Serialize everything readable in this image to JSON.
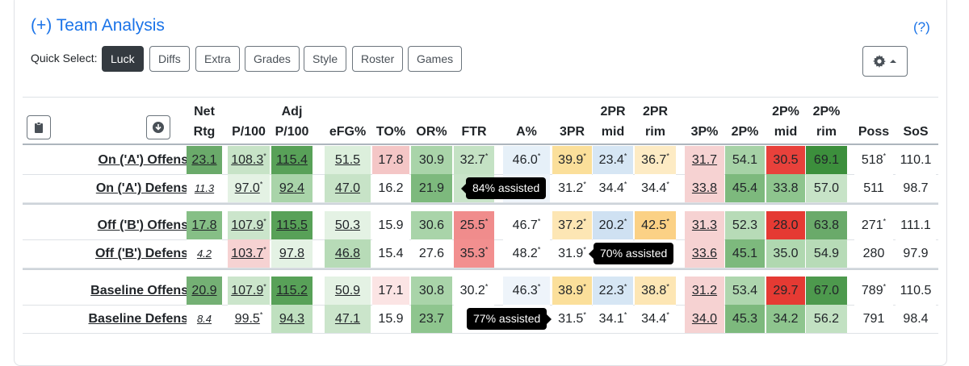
{
  "title": "(+) Team Analysis",
  "help_label": "(?)",
  "quick_select": {
    "label": "Quick Select:",
    "buttons": [
      "Luck",
      "Diffs",
      "Extra",
      "Grades",
      "Style",
      "Roster",
      "Games"
    ],
    "active": "Luck"
  },
  "settings": {
    "icon": "gear-icon",
    "caret": "caret-up-icon"
  },
  "toolbar_icons": [
    "clipboard-icon",
    "download-icon"
  ],
  "columns": [
    {
      "line1": "Net",
      "line2": "Rtg"
    },
    {
      "line1": "",
      "line2": "P/100"
    },
    {
      "line1": "Adj",
      "line2": "P/100"
    },
    {
      "line1": "",
      "line2": "eFG%"
    },
    {
      "line1": "",
      "line2": "TO%"
    },
    {
      "line1": "",
      "line2": "OR%"
    },
    {
      "line1": "",
      "line2": "FTR"
    },
    {
      "line1": "",
      "line2": "A%"
    },
    {
      "line1": "",
      "line2": "3PR"
    },
    {
      "line1": "2PR",
      "line2": "mid"
    },
    {
      "line1": "2PR",
      "line2": "rim"
    },
    {
      "line1": "",
      "line2": "3P%"
    },
    {
      "line1": "",
      "line2": "2P%"
    },
    {
      "line1": "2P%",
      "line2": "mid"
    },
    {
      "line1": "2P%",
      "line2": "rim"
    },
    {
      "line1": "",
      "line2": "Poss"
    },
    {
      "line1": "",
      "line2": "SoS"
    }
  ],
  "rows": [
    {
      "label": "On ('A') Offense",
      "cells": [
        {
          "v": "23.1",
          "bg": "#6aaa6a",
          "u": true
        },
        {
          "v": "108.3",
          "s": "*",
          "bg": "#c7e3c7",
          "u": true
        },
        {
          "v": "115.4",
          "bg": "#58a158",
          "u": true
        },
        {
          "v": "51.5",
          "bg": "#dcefdc",
          "u": true
        },
        {
          "v": "17.8",
          "bg": "#f4c6c6"
        },
        {
          "v": "30.9",
          "bg": "#a9d4a9"
        },
        {
          "v": "32.7",
          "s": "*",
          "bg": "#c4e2c4"
        },
        {
          "v": "46.0",
          "s": "*",
          "bg": "#e6f0f8"
        },
        {
          "v": "39.9",
          "s": "*",
          "bg": "#fbdf9a"
        },
        {
          "v": "23.4",
          "s": "*",
          "bg": "#d6e6f4"
        },
        {
          "v": "36.7",
          "s": "*",
          "bg": "#fdebc4"
        },
        {
          "v": "31.7",
          "bg": "#f6d2d2",
          "u": true
        },
        {
          "v": "54.1",
          "bg": "#a6d2a6"
        },
        {
          "v": "30.5",
          "bg": "#e8413b"
        },
        {
          "v": "69.1",
          "bg": "#3c8f3c"
        },
        {
          "v": "518",
          "s": "*",
          "bg": "#ffffff"
        },
        {
          "v": "110.1",
          "bg": "#ffffff"
        }
      ]
    },
    {
      "label": "On ('A') Defense",
      "cells": [
        {
          "v": "11.3",
          "bg": "#ffffff",
          "u": true,
          "small": true
        },
        {
          "v": "97.0",
          "s": "*",
          "bg": "#e4f2e4",
          "u": true
        },
        {
          "v": "92.4",
          "bg": "#a9d4a9",
          "u": true
        },
        {
          "v": "47.0",
          "bg": "#c7e3c7",
          "u": true
        },
        {
          "v": "16.2",
          "bg": "#ffffff"
        },
        {
          "v": "21.9",
          "bg": "#7db97d"
        },
        {
          "v": "2",
          "bg": "#c9e4c9"
        },
        {
          "v": "",
          "bg": "#eef4fa"
        },
        {
          "v": "31.2",
          "s": "*",
          "bg": "#ffffff"
        },
        {
          "v": "34.4",
          "s": "*",
          "bg": "#ffffff"
        },
        {
          "v": "34.4",
          "s": "*",
          "bg": "#ffffff"
        },
        {
          "v": "33.8",
          "bg": "#f6d2d2",
          "u": true
        },
        {
          "v": "45.4",
          "bg": "#7db97d"
        },
        {
          "v": "33.8",
          "bg": "#8ec58e"
        },
        {
          "v": "57.0",
          "bg": "#c7e3c7"
        },
        {
          "v": "511",
          "bg": "#ffffff"
        },
        {
          "v": "98.7",
          "bg": "#ffffff"
        }
      ]
    },
    {
      "label": "Off ('B') Offense",
      "cells": [
        {
          "v": "17.8",
          "bg": "#86bf86",
          "u": true
        },
        {
          "v": "107.9",
          "s": "*",
          "bg": "#cbe5cb",
          "u": true
        },
        {
          "v": "115.5",
          "bg": "#58a158",
          "u": true
        },
        {
          "v": "50.3",
          "bg": "#e4f2e4",
          "u": true
        },
        {
          "v": "15.9",
          "bg": "#ffffff"
        },
        {
          "v": "30.6",
          "bg": "#a9d4a9"
        },
        {
          "v": "25.5",
          "s": "*",
          "bg": "#f08c8c"
        },
        {
          "v": "46.7",
          "s": "*",
          "bg": "#ffffff"
        },
        {
          "v": "37.2",
          "s": "*",
          "bg": "#fde6b4"
        },
        {
          "v": "20.2",
          "s": "*",
          "bg": "#cfe1f2"
        },
        {
          "v": "42.5",
          "s": "*",
          "bg": "#fbd185"
        },
        {
          "v": "31.3",
          "bg": "#f6d2d2",
          "u": true
        },
        {
          "v": "52.3",
          "bg": "#b7dbb7"
        },
        {
          "v": "28.0",
          "bg": "#e53a33"
        },
        {
          "v": "63.8",
          "bg": "#6aaa6a"
        },
        {
          "v": "271",
          "s": "*",
          "bg": "#ffffff"
        },
        {
          "v": "111.1",
          "bg": "#ffffff"
        }
      ]
    },
    {
      "label": "Off ('B') Defense",
      "cells": [
        {
          "v": "4.2",
          "bg": "#ffffff",
          "u": true,
          "small": true
        },
        {
          "v": "103.7",
          "s": "*",
          "bg": "#f6d2d2",
          "u": true
        },
        {
          "v": "97.8",
          "bg": "#e4f2e4",
          "u": true
        },
        {
          "v": "46.8",
          "bg": "#b7dbb7",
          "u": true
        },
        {
          "v": "15.4",
          "bg": "#ffffff"
        },
        {
          "v": "27.6",
          "bg": "#ffffff"
        },
        {
          "v": "35.3",
          "s": "*",
          "bg": "#f28f8f"
        },
        {
          "v": "48.2",
          "s": "*",
          "bg": "#ffffff"
        },
        {
          "v": "31.9",
          "s": "*",
          "bg": "#ffffff"
        },
        {
          "v": "",
          "bg": "#ffffff"
        },
        {
          "v": "",
          "bg": "#ffffff"
        },
        {
          "v": "33.6",
          "bg": "#f6d2d2",
          "u": true
        },
        {
          "v": "45.1",
          "bg": "#7db97d"
        },
        {
          "v": "35.0",
          "bg": "#b0d8b0"
        },
        {
          "v": "54.9",
          "bg": "#b7dbb7"
        },
        {
          "v": "280",
          "bg": "#ffffff"
        },
        {
          "v": "97.9",
          "bg": "#ffffff"
        }
      ]
    },
    {
      "label": "Baseline Offense",
      "cells": [
        {
          "v": "20.9",
          "bg": "#74b074",
          "u": true
        },
        {
          "v": "107.9",
          "s": "*",
          "bg": "#cbe5cb",
          "u": true
        },
        {
          "v": "115.2",
          "bg": "#58a158",
          "u": true
        },
        {
          "v": "50.9",
          "bg": "#e4f2e4",
          "u": true
        },
        {
          "v": "17.1",
          "bg": "#fbe4e4"
        },
        {
          "v": "30.8",
          "bg": "#a9d4a9"
        },
        {
          "v": "30.2",
          "s": "*",
          "bg": "#ffffff"
        },
        {
          "v": "46.3",
          "s": "*",
          "bg": "#eef4fa"
        },
        {
          "v": "38.9",
          "s": "*",
          "bg": "#fbdf9a"
        },
        {
          "v": "22.3",
          "s": "*",
          "bg": "#d6e6f4"
        },
        {
          "v": "38.8",
          "s": "*",
          "bg": "#fde6b4"
        },
        {
          "v": "31.2",
          "bg": "#f6d2d2",
          "u": true
        },
        {
          "v": "53.4",
          "bg": "#aed6ae"
        },
        {
          "v": "29.7",
          "bg": "#e53a33"
        },
        {
          "v": "67.0",
          "bg": "#4d994d"
        },
        {
          "v": "789",
          "s": "*",
          "bg": "#ffffff"
        },
        {
          "v": "110.5",
          "bg": "#ffffff"
        }
      ]
    },
    {
      "label": "Baseline Defense",
      "cells": [
        {
          "v": "8.4",
          "bg": "#ffffff",
          "u": true,
          "small": true
        },
        {
          "v": "99.5",
          "s": "*",
          "bg": "#ffffff",
          "u": true
        },
        {
          "v": "94.3",
          "bg": "#bfe0bf",
          "u": true
        },
        {
          "v": "47.1",
          "bg": "#cbe5cb",
          "u": true
        },
        {
          "v": "15.9",
          "bg": "#ffffff"
        },
        {
          "v": "23.7",
          "bg": "#8ec58e"
        },
        {
          "v": "3",
          "bg": "#ffffff"
        },
        {
          "v": "",
          "bg": "#ffffff"
        },
        {
          "v": "31.5",
          "s": "*",
          "bg": "#ffffff"
        },
        {
          "v": "34.1",
          "s": "*",
          "bg": "#ffffff"
        },
        {
          "v": "34.4",
          "s": "*",
          "bg": "#ffffff"
        },
        {
          "v": "34.0",
          "bg": "#f6d2d2",
          "u": true
        },
        {
          "v": "45.3",
          "bg": "#7db97d"
        },
        {
          "v": "34.2",
          "bg": "#8ec58e"
        },
        {
          "v": "56.2",
          "bg": "#c2e1c2"
        },
        {
          "v": "791",
          "bg": "#ffffff"
        },
        {
          "v": "98.4",
          "bg": "#ffffff"
        }
      ]
    }
  ],
  "tooltips": [
    {
      "text": "84% assisted"
    },
    {
      "text": "70% assisted"
    },
    {
      "text": "77% assisted"
    }
  ]
}
